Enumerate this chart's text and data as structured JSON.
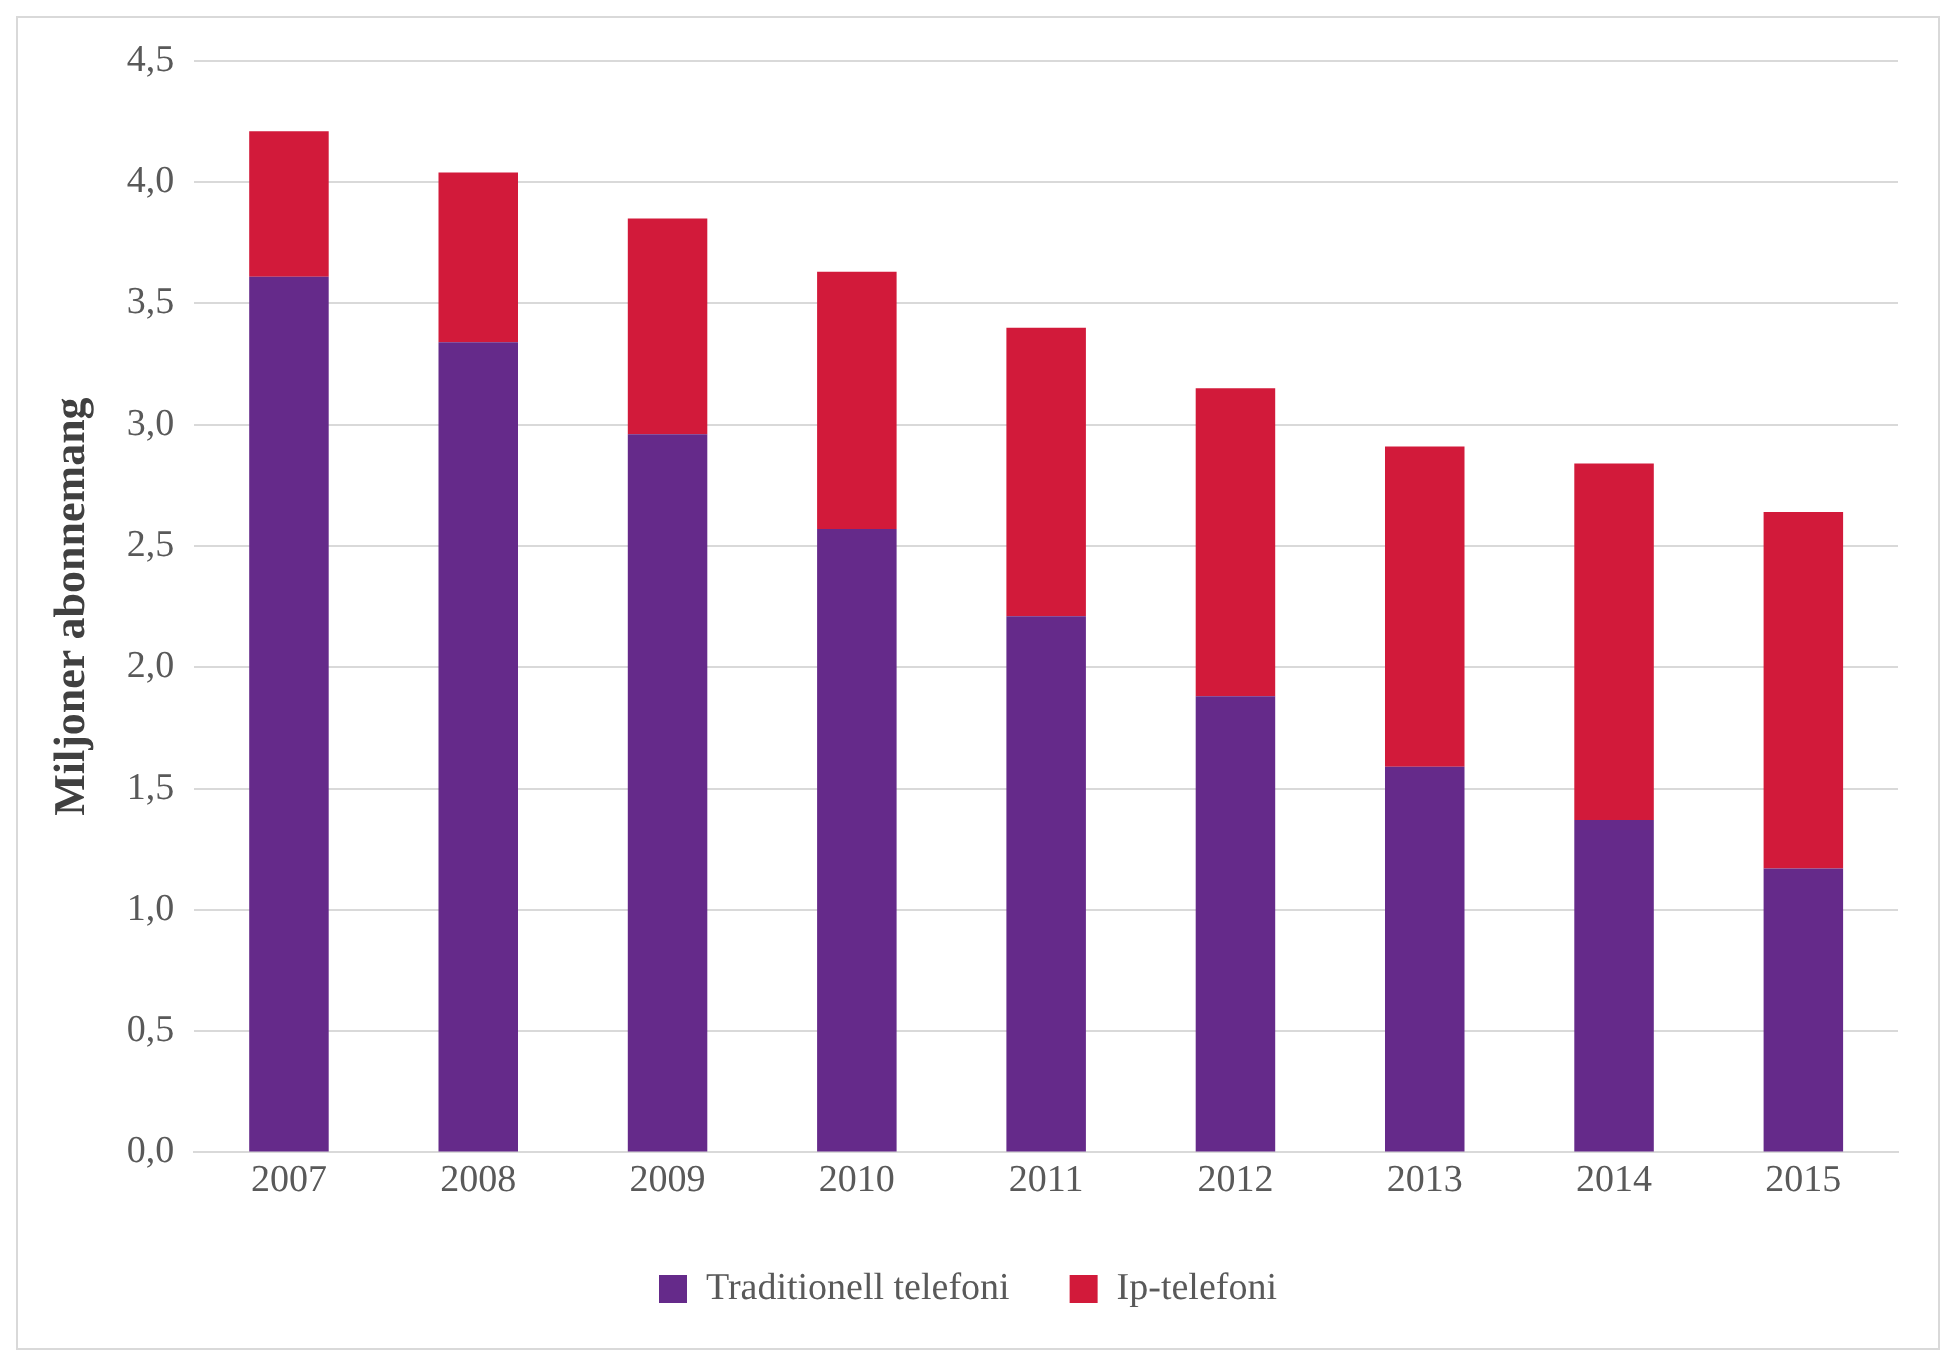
{
  "chart_data": {
    "type": "bar",
    "stacked": true,
    "ylabel": "Miljoner abonnemang",
    "categories": [
      "2007",
      "2008",
      "2009",
      "2010",
      "2011",
      "2012",
      "2013",
      "2014",
      "2015"
    ],
    "series": [
      {
        "name": "Traditionell telefoni",
        "color": "#652a8a",
        "values": [
          3.61,
          3.34,
          2.96,
          2.57,
          2.21,
          1.88,
          1.59,
          1.37,
          1.17
        ]
      },
      {
        "name": "Ip-telefoni",
        "color": "#d21a3a",
        "values": [
          0.6,
          0.7,
          0.89,
          1.06,
          1.19,
          1.27,
          1.32,
          1.47,
          1.47
        ]
      }
    ],
    "ylim": [
      0,
      4.5
    ],
    "yticks": [
      {
        "value": 0,
        "label": "0,0"
      },
      {
        "value": 0.5,
        "label": "0,5"
      },
      {
        "value": 1,
        "label": "1,0"
      },
      {
        "value": 1.5,
        "label": "1,5"
      },
      {
        "value": 2,
        "label": "2,0"
      },
      {
        "value": 2.5,
        "label": "2,5"
      },
      {
        "value": 3,
        "label": "3,0"
      },
      {
        "value": 3.5,
        "label": "3,5"
      },
      {
        "value": 4,
        "label": "4,0"
      },
      {
        "value": 4.5,
        "label": "4,5"
      }
    ],
    "grid": "y",
    "legend": "bottom"
  }
}
